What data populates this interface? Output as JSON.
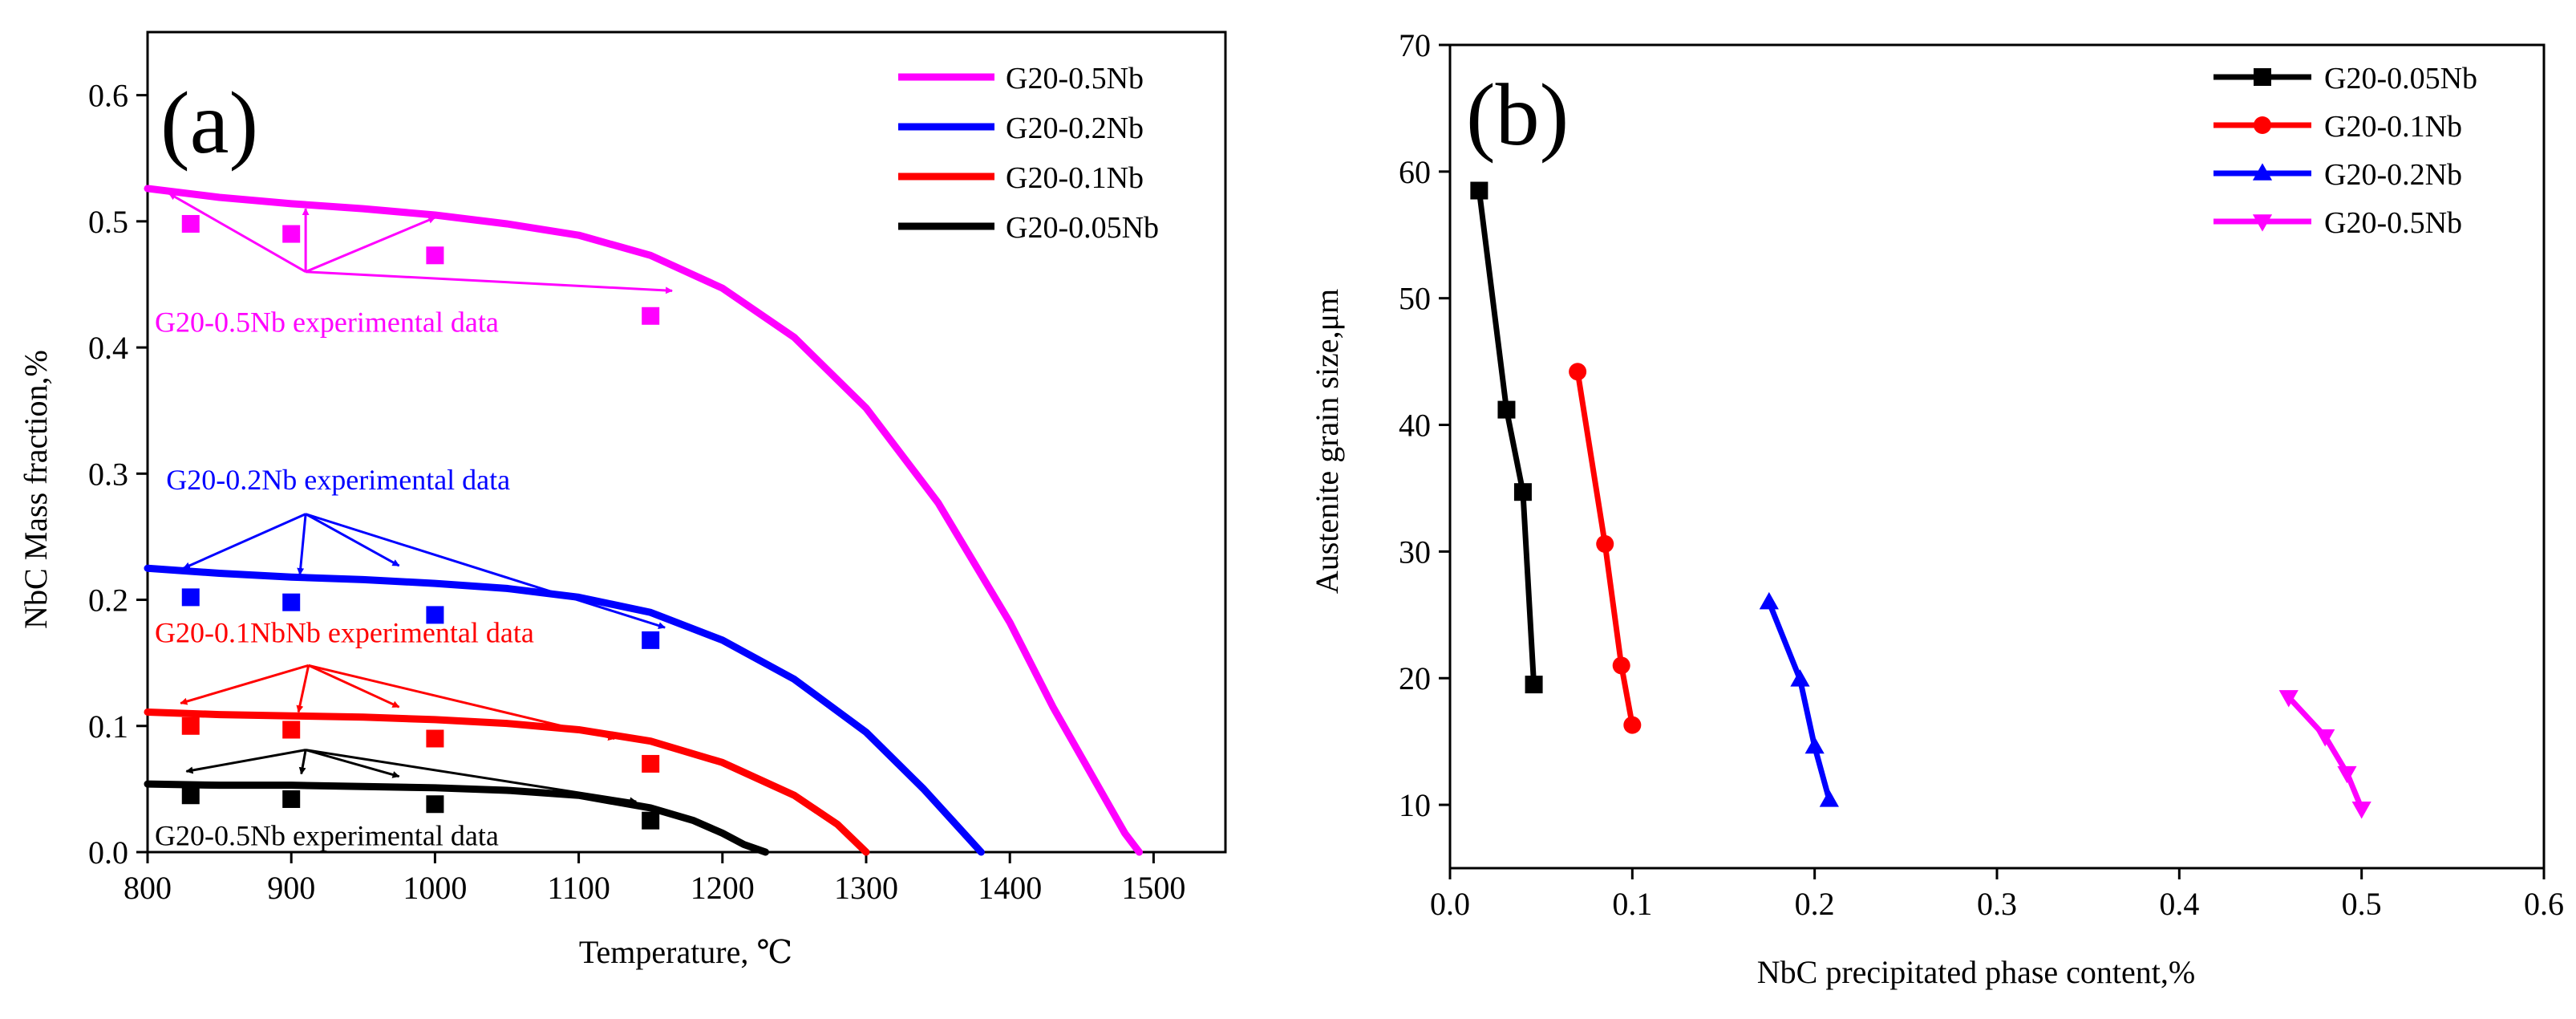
{
  "chart_data": [
    {
      "type": "line",
      "panel_label": "(a)",
      "xlabel": "Temperature, ℃",
      "ylabel": "NbC Mass fraction,%",
      "xlim": [
        800,
        1550
      ],
      "ylim": [
        0,
        0.65
      ],
      "xticks": [
        800,
        900,
        1000,
        1100,
        1200,
        1300,
        1400,
        1500
      ],
      "yticks": [
        0.0,
        0.1,
        0.2,
        0.3,
        0.4,
        0.5,
        0.6
      ],
      "legend_position": "top-right",
      "series": [
        {
          "name": "G20-0.5Nb",
          "color": "#ff00ff",
          "x": [
            800,
            850,
            900,
            950,
            1000,
            1050,
            1100,
            1150,
            1200,
            1250,
            1300,
            1350,
            1400,
            1430,
            1450,
            1470,
            1480,
            1490
          ],
          "y": [
            0.526,
            0.519,
            0.514,
            0.51,
            0.505,
            0.498,
            0.489,
            0.473,
            0.447,
            0.408,
            0.352,
            0.277,
            0.182,
            0.115,
            0.075,
            0.035,
            0.015,
            0.0
          ]
        },
        {
          "name": "G20-0.2Nb",
          "color": "#0000ff",
          "x": [
            800,
            850,
            900,
            950,
            1000,
            1050,
            1100,
            1150,
            1200,
            1250,
            1300,
            1340,
            1360,
            1380
          ],
          "y": [
            0.225,
            0.221,
            0.218,
            0.216,
            0.213,
            0.209,
            0.202,
            0.19,
            0.168,
            0.137,
            0.095,
            0.05,
            0.025,
            0.0
          ]
        },
        {
          "name": "G20-0.1Nb",
          "color": "#ff0000",
          "x": [
            800,
            850,
            900,
            950,
            1000,
            1050,
            1100,
            1150,
            1200,
            1250,
            1280,
            1300
          ],
          "y": [
            0.111,
            0.109,
            0.108,
            0.107,
            0.105,
            0.102,
            0.097,
            0.088,
            0.071,
            0.045,
            0.022,
            0.0
          ]
        },
        {
          "name": "G20-0.05Nb",
          "color": "#000000",
          "x": [
            800,
            850,
            900,
            950,
            1000,
            1050,
            1100,
            1150,
            1180,
            1200,
            1215,
            1230
          ],
          "y": [
            0.054,
            0.053,
            0.053,
            0.052,
            0.051,
            0.049,
            0.045,
            0.035,
            0.025,
            0.015,
            0.006,
            0.0
          ]
        }
      ],
      "experimental": [
        {
          "color": "#ff00ff",
          "x": [
            830,
            900,
            1000,
            1150
          ],
          "y": [
            0.498,
            0.49,
            0.473,
            0.425
          ]
        },
        {
          "color": "#0000ff",
          "x": [
            830,
            900,
            1000,
            1150
          ],
          "y": [
            0.202,
            0.198,
            0.188,
            0.168
          ]
        },
        {
          "color": "#ff0000",
          "x": [
            830,
            900,
            1000,
            1150
          ],
          "y": [
            0.1,
            0.097,
            0.09,
            0.07
          ]
        },
        {
          "color": "#000000",
          "x": [
            830,
            900,
            1000,
            1150
          ],
          "y": [
            0.045,
            0.042,
            0.038,
            0.025
          ]
        }
      ],
      "annotations": [
        {
          "text": "G20-0.5Nb experimental data",
          "color": "#ff00ff",
          "x": 805,
          "y": 0.42,
          "arrow_origin": [
            910,
            0.46
          ],
          "arrow_targets": [
            [
              815,
              0.522
            ],
            [
              910,
              0.51
            ],
            [
              1000,
              0.503
            ],
            [
              1165,
              0.445
            ]
          ]
        },
        {
          "text": "G20-0.2Nb experimental data",
          "color": "#0000ff",
          "x": 813,
          "y": 0.295,
          "arrow_origin": [
            910,
            0.268
          ],
          "arrow_targets": [
            [
              825,
              0.225
            ],
            [
              906,
              0.22
            ],
            [
              975,
              0.227
            ],
            [
              1160,
              0.178
            ]
          ]
        },
        {
          "text": "G20-0.1NbNb experimental data",
          "color": "#ff0000",
          "x": 805,
          "y": 0.174,
          "arrow_origin": [
            912,
            0.148
          ],
          "arrow_targets": [
            [
              823,
              0.118
            ],
            [
              905,
              0.111
            ],
            [
              975,
              0.115
            ],
            [
              1125,
              0.09
            ]
          ]
        },
        {
          "text": "G20-0.5Nb experimental data",
          "color": "#000000",
          "x": 805,
          "y": 0.013,
          "arrow_origin": [
            910,
            0.081
          ],
          "arrow_targets": [
            [
              827,
              0.064
            ],
            [
              907,
              0.062
            ],
            [
              975,
              0.06
            ],
            [
              1140,
              0.04
            ]
          ]
        }
      ]
    },
    {
      "type": "line",
      "panel_label": "(b)",
      "xlabel": "NbC precipitated phase content,%",
      "ylabel": "Austenite grain size,μm",
      "xlim": [
        0.0,
        0.6
      ],
      "ylim": [
        5,
        70
      ],
      "xticks": [
        0.0,
        0.1,
        0.2,
        0.3,
        0.4,
        0.5,
        0.6
      ],
      "yticks": [
        10,
        20,
        30,
        40,
        50,
        60,
        70
      ],
      "legend_position": "top-right",
      "series": [
        {
          "name": "G20-0.05Nb",
          "color": "#000000",
          "marker": "square",
          "x": [
            0.016,
            0.031,
            0.04,
            0.046
          ],
          "y": [
            58.5,
            41.2,
            34.7,
            19.5
          ]
        },
        {
          "name": "G20-0.1Nb",
          "color": "#ff0000",
          "marker": "circle",
          "x": [
            0.07,
            0.085,
            0.094,
            0.1
          ],
          "y": [
            44.2,
            30.6,
            21.0,
            16.3
          ]
        },
        {
          "name": "G20-0.2Nb",
          "color": "#0000ff",
          "marker": "triangle-up",
          "x": [
            0.175,
            0.192,
            0.2,
            0.208
          ],
          "y": [
            26.0,
            19.9,
            14.6,
            10.4
          ]
        },
        {
          "name": "G20-0.5Nb",
          "color": "#ff00ff",
          "marker": "triangle-down",
          "x": [
            0.46,
            0.48,
            0.492,
            0.5
          ],
          "y": [
            18.5,
            15.4,
            12.5,
            9.7
          ]
        }
      ]
    }
  ]
}
